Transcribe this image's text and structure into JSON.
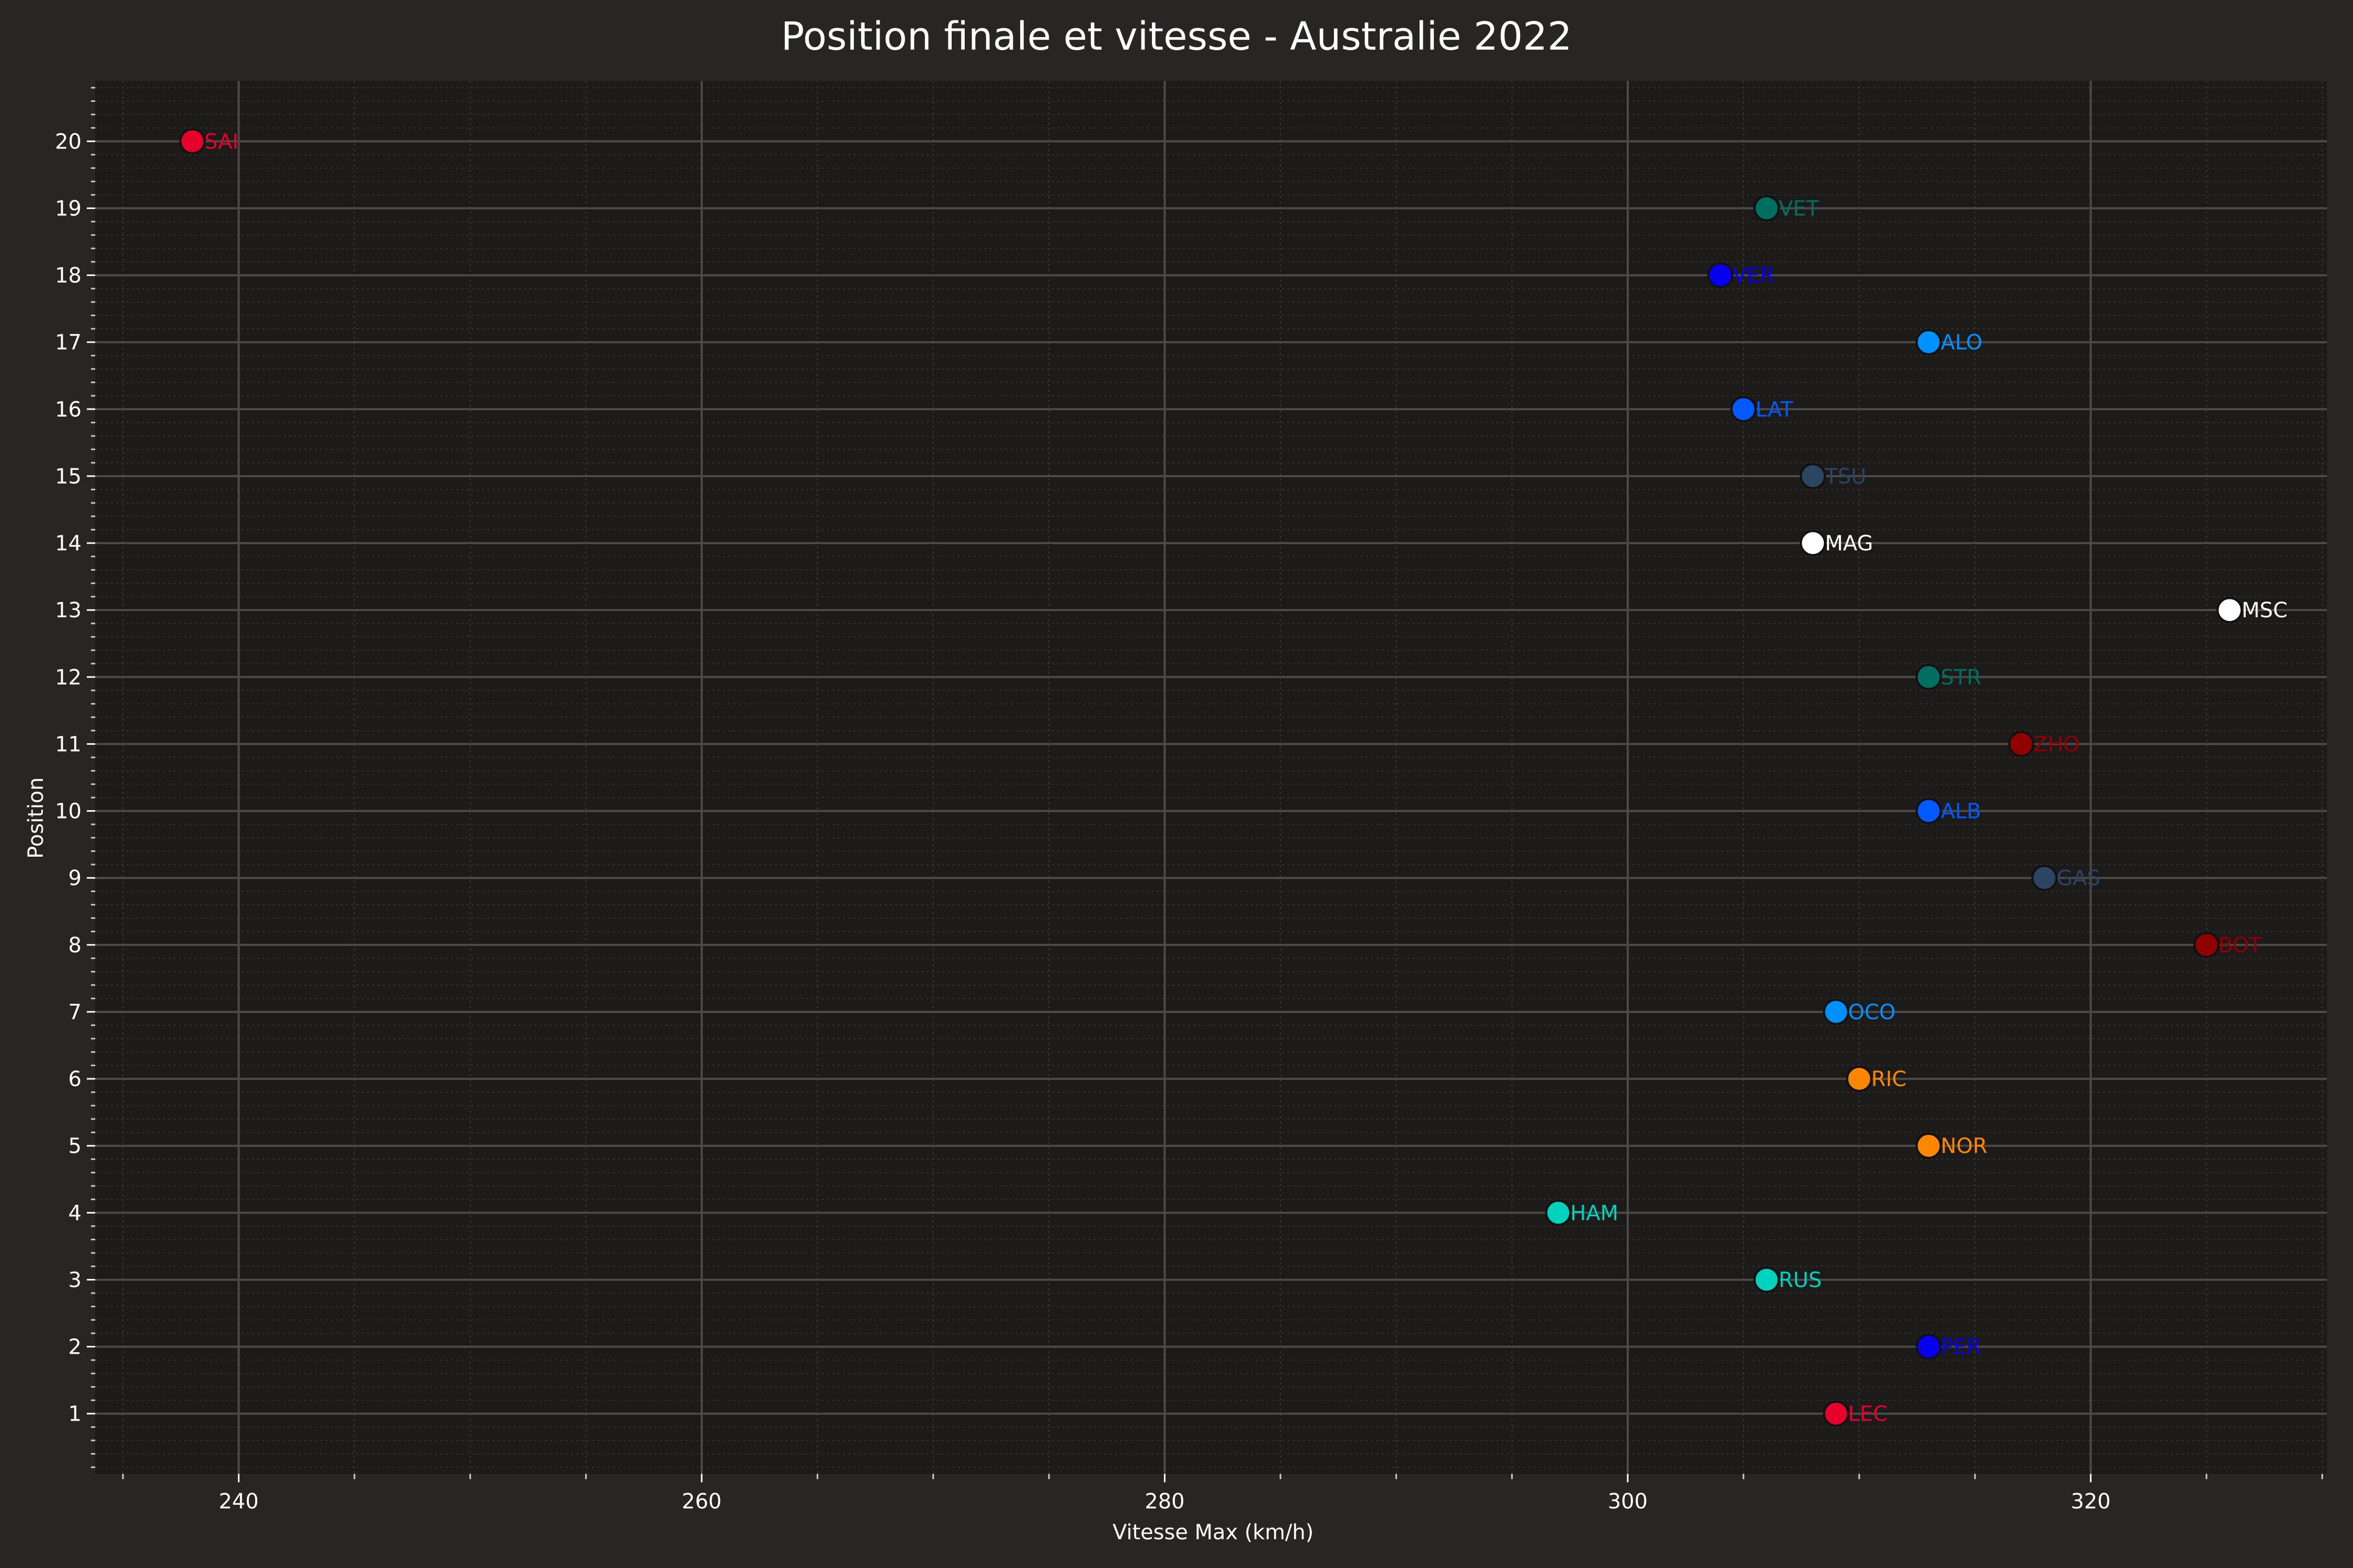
{
  "chart_data": {
    "type": "scatter",
    "title": "Position finale et vitesse - Australie 2022",
    "xlabel": "Vitesse Max (km/h)",
    "ylabel": "Position",
    "xlim": [
      233.8,
      330.2
    ],
    "ylim": [
      0.1,
      20.9
    ],
    "xticks": [
      240,
      260,
      280,
      300,
      320
    ],
    "yticks": [
      1,
      2,
      3,
      4,
      5,
      6,
      7,
      8,
      9,
      10,
      11,
      12,
      13,
      14,
      15,
      16,
      17,
      18,
      19,
      20
    ],
    "grid": true,
    "background": "#1c1b1a",
    "points": [
      {
        "driver": "LEC",
        "x": 309,
        "y": 1,
        "color": "#e8002d"
      },
      {
        "driver": "PER",
        "x": 313,
        "y": 2,
        "color": "#0600ef"
      },
      {
        "driver": "RUS",
        "x": 306,
        "y": 3,
        "color": "#00d2be"
      },
      {
        "driver": "HAM",
        "x": 297,
        "y": 4,
        "color": "#00d2be"
      },
      {
        "driver": "NOR",
        "x": 313,
        "y": 5,
        "color": "#ff8700"
      },
      {
        "driver": "RIC",
        "x": 310,
        "y": 6,
        "color": "#ff8700"
      },
      {
        "driver": "OCO",
        "x": 309,
        "y": 7,
        "color": "#0090ff"
      },
      {
        "driver": "BOT",
        "x": 325,
        "y": 8,
        "color": "#900000"
      },
      {
        "driver": "GAS",
        "x": 318,
        "y": 9,
        "color": "#2b4562"
      },
      {
        "driver": "ALB",
        "x": 313,
        "y": 10,
        "color": "#005aff"
      },
      {
        "driver": "ZHO",
        "x": 317,
        "y": 11,
        "color": "#900000"
      },
      {
        "driver": "STR",
        "x": 313,
        "y": 12,
        "color": "#006f62"
      },
      {
        "driver": "MSC",
        "x": 326,
        "y": 13,
        "color": "#ffffff"
      },
      {
        "driver": "MAG",
        "x": 308,
        "y": 14,
        "color": "#ffffff"
      },
      {
        "driver": "TSU",
        "x": 308,
        "y": 15,
        "color": "#2b4562"
      },
      {
        "driver": "LAT",
        "x": 305,
        "y": 16,
        "color": "#005aff"
      },
      {
        "driver": "ALO",
        "x": 313,
        "y": 17,
        "color": "#0090ff"
      },
      {
        "driver": "VER",
        "x": 304,
        "y": 18,
        "color": "#0600ef"
      },
      {
        "driver": "VET",
        "x": 306,
        "y": 19,
        "color": "#006f62"
      },
      {
        "driver": "SAI",
        "x": 238,
        "y": 20,
        "color": "#e8002d"
      }
    ]
  }
}
